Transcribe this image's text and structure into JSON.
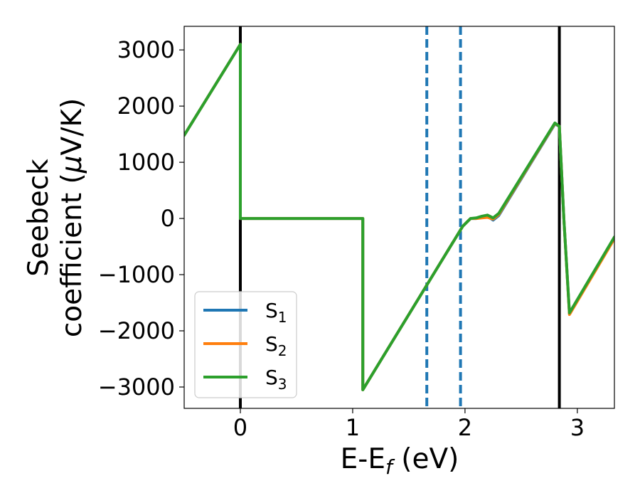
{
  "chart_data": {
    "type": "line",
    "xlabel": "E-E",
    "xlabel_sub": "f",
    "xlabel_unit": " (eV)",
    "ylabel_line1": "Seebeck",
    "ylabel_line2": "coefficient  (",
    "ylabel_mu": "μ",
    "ylabel_unit": "V/K)",
    "xlim": [
      -0.5,
      3.33
    ],
    "ylim": [
      -3380,
      3420
    ],
    "x_ticks": [
      0,
      1,
      2,
      3
    ],
    "x_tick_labels": [
      "0",
      "1",
      "2",
      "3"
    ],
    "y_ticks": [
      3000,
      2000,
      1000,
      0,
      -1000,
      -2000,
      -3000
    ],
    "y_tick_labels": [
      "3000",
      "2000",
      "1000",
      "0",
      "−1000",
      "−2000",
      "−3000"
    ],
    "grid": false,
    "legend_position": "lower-left",
    "vlines": [
      {
        "x": 0.0,
        "style": "solid",
        "color": "#000000"
      },
      {
        "x": 2.84,
        "style": "solid",
        "color": "#000000"
      },
      {
        "x": 1.66,
        "style": "dashed",
        "color": "#1f77b4"
      },
      {
        "x": 1.96,
        "style": "dashed",
        "color": "#1f77b4"
      }
    ],
    "series": [
      {
        "name": "S",
        "name_sub": "1",
        "color": "#1f77b4",
        "points": [
          [
            -0.5,
            1480
          ],
          [
            0.0,
            3100
          ],
          [
            0.0,
            0
          ],
          [
            1.09,
            0
          ],
          [
            1.09,
            -3050
          ],
          [
            1.98,
            -140
          ],
          [
            2.05,
            0
          ],
          [
            2.1,
            0
          ],
          [
            2.15,
            20
          ],
          [
            2.2,
            40
          ],
          [
            2.25,
            -30
          ],
          [
            2.3,
            50
          ],
          [
            2.8,
            1680
          ],
          [
            2.84,
            1640
          ],
          [
            2.88,
            0
          ],
          [
            2.93,
            -1700
          ],
          [
            3.33,
            -350
          ]
        ]
      },
      {
        "name": "S",
        "name_sub": "2",
        "color": "#ff7f0e",
        "points": [
          [
            -0.5,
            1480
          ],
          [
            0.0,
            3100
          ],
          [
            0.0,
            0
          ],
          [
            1.09,
            0
          ],
          [
            1.09,
            -3050
          ],
          [
            1.98,
            -140
          ],
          [
            2.05,
            0
          ],
          [
            2.1,
            0
          ],
          [
            2.15,
            10
          ],
          [
            2.2,
            20
          ],
          [
            2.25,
            -10
          ],
          [
            2.3,
            70
          ],
          [
            2.8,
            1690
          ],
          [
            2.84,
            1640
          ],
          [
            2.88,
            0
          ],
          [
            2.93,
            -1710
          ],
          [
            3.33,
            -360
          ]
        ]
      },
      {
        "name": "S",
        "name_sub": "3",
        "color": "#2ca02c",
        "points": [
          [
            -0.5,
            1480
          ],
          [
            0.0,
            3100
          ],
          [
            0.0,
            0
          ],
          [
            1.09,
            0
          ],
          [
            1.09,
            -3050
          ],
          [
            1.98,
            -140
          ],
          [
            2.05,
            0
          ],
          [
            2.1,
            10
          ],
          [
            2.15,
            40
          ],
          [
            2.2,
            60
          ],
          [
            2.25,
            10
          ],
          [
            2.3,
            90
          ],
          [
            2.8,
            1700
          ],
          [
            2.84,
            1640
          ],
          [
            2.88,
            0
          ],
          [
            2.93,
            -1680
          ],
          [
            3.33,
            -330
          ]
        ]
      }
    ]
  }
}
